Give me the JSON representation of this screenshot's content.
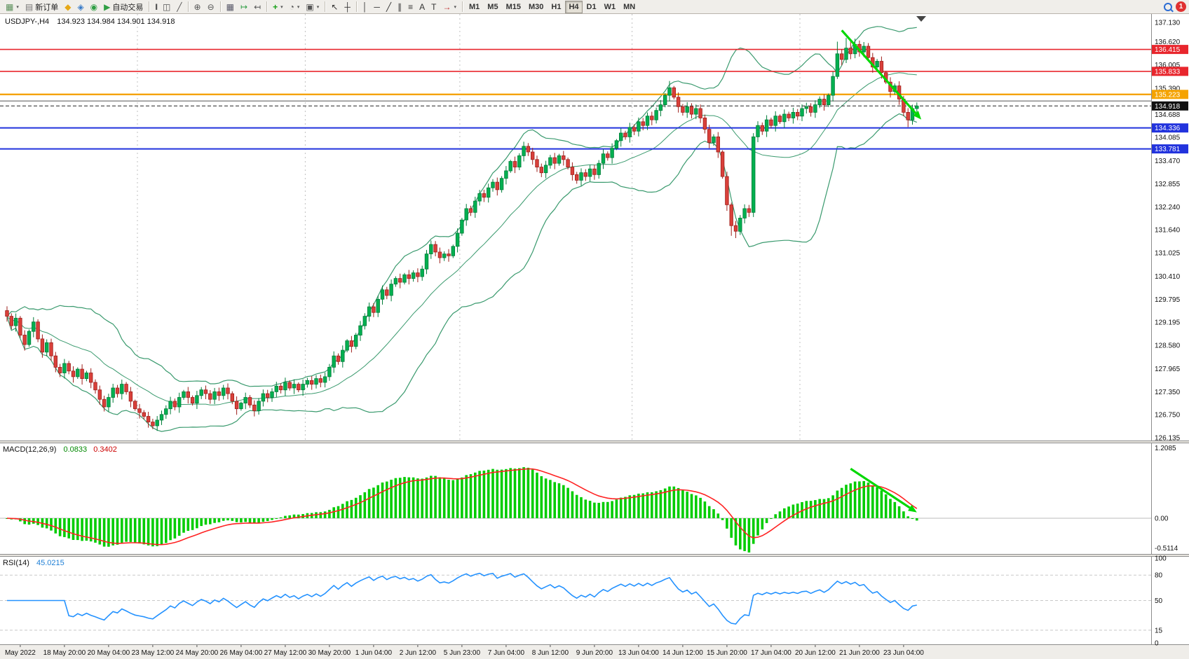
{
  "toolbar": {
    "items": [
      {
        "name": "new-chart-button",
        "glyph": "▦",
        "color": "#5a8f5a",
        "caret": true
      },
      {
        "name": "new-order-button",
        "glyph": "▤",
        "color": "#777",
        "label": "新订单"
      },
      {
        "name": "market-button",
        "glyph": "◆",
        "color": "#e6a817"
      },
      {
        "name": "signals-button",
        "glyph": "◈",
        "color": "#3579c8"
      },
      {
        "name": "community-button",
        "glyph": "◉",
        "color": "#2f9e44"
      },
      {
        "name": "autotrading-button",
        "glyph": "▶",
        "color": "#2f9e44",
        "label": "自动交易"
      },
      {
        "type": "sep"
      },
      {
        "name": "bar-chart-button",
        "glyph": "|||",
        "tight": true,
        "color": "#555"
      },
      {
        "name": "candlestick-chart-button",
        "glyph": "◫",
        "color": "#555"
      },
      {
        "name": "line-chart-button",
        "glyph": "╱",
        "color": "#555"
      },
      {
        "type": "sep"
      },
      {
        "name": "zoom-in-button",
        "glyph": "⊕",
        "color": "#555"
      },
      {
        "name": "zoom-out-button",
        "glyph": "⊖",
        "color": "#555"
      },
      {
        "type": "sep"
      },
      {
        "name": "tile-windows-button",
        "glyph": "▦",
        "color": "#556"
      },
      {
        "name": "auto-scroll-button",
        "glyph": "↦",
        "color": "#2f9e44"
      },
      {
        "name": "chart-shift-button",
        "glyph": "↤",
        "color": "#555"
      },
      {
        "type": "sep"
      },
      {
        "name": "indicators-button",
        "glyph": "+",
        "bold": true,
        "color": "#18a018",
        "caret": true
      },
      {
        "name": "periods-button",
        "glyph": "◔",
        "color": "#555",
        "caret": true
      },
      {
        "name": "templates-button",
        "glyph": "▣",
        "color": "#555",
        "caret": true
      },
      {
        "type": "sep"
      },
      {
        "name": "cursor-button",
        "glyph": "↖",
        "color": "#333"
      },
      {
        "name": "crosshair-button",
        "glyph": "┼",
        "color": "#333"
      },
      {
        "type": "sep"
      },
      {
        "name": "vertical-line-button",
        "glyph": "│",
        "color": "#333"
      },
      {
        "name": "horizontal-line-button",
        "glyph": "─",
        "color": "#333"
      },
      {
        "name": "trendline-button",
        "glyph": "╱",
        "color": "#333"
      },
      {
        "name": "channel-button",
        "glyph": "∥",
        "color": "#333"
      },
      {
        "name": "fibonacci-button",
        "glyph": "≡",
        "color": "#333"
      },
      {
        "name": "text-button",
        "glyph": "A",
        "color": "#333"
      },
      {
        "name": "text-label-button",
        "glyph": "T",
        "color": "#333"
      },
      {
        "name": "arrows-button",
        "glyph": "→",
        "color": "#c03030",
        "caret": true
      },
      {
        "type": "sep"
      },
      {
        "name": "timeframe-m1-button",
        "label": "M1",
        "cls": "tf"
      },
      {
        "name": "timeframe-m5-button",
        "label": "M5",
        "cls": "tf"
      },
      {
        "name": "timeframe-m15-button",
        "label": "M15",
        "cls": "tf"
      },
      {
        "name": "timeframe-m30-button",
        "label": "M30",
        "cls": "tf"
      },
      {
        "name": "timeframe-h1-button",
        "label": "H1",
        "cls": "tf"
      },
      {
        "name": "timeframe-h4-button",
        "label": "H4",
        "cls": "tf",
        "active": true
      },
      {
        "name": "timeframe-d1-button",
        "label": "D1",
        "cls": "tf"
      },
      {
        "name": "timeframe-w1-button",
        "label": "W1",
        "cls": "tf"
      },
      {
        "name": "timeframe-mn-button",
        "label": "MN",
        "cls": "tf"
      },
      {
        "name": "search-button",
        "cls": "right",
        "search": true
      },
      {
        "name": "notifications-badge",
        "cls": "badge",
        "label": "1"
      }
    ]
  },
  "chart": {
    "symbol_period": "USDJPY-,H4",
    "ohlc_text": "134.923 134.984 134.901 134.918"
  },
  "chart_data": {
    "type": "candlestick",
    "symbol": "USDJPY-",
    "timeframe": "H4",
    "first_open": 129.5,
    "closes": [
      129.35,
      129.1,
      129.3,
      128.85,
      128.6,
      128.95,
      129.2,
      128.75,
      128.4,
      128.65,
      128.3,
      128.0,
      127.85,
      128.1,
      127.9,
      127.75,
      127.95,
      127.7,
      127.85,
      127.6,
      127.4,
      127.15,
      126.95,
      127.2,
      127.45,
      127.3,
      127.55,
      127.35,
      127.1,
      126.9,
      126.8,
      126.7,
      126.55,
      126.45,
      126.6,
      126.75,
      126.9,
      127.1,
      126.95,
      127.2,
      127.35,
      127.2,
      127.05,
      127.25,
      127.4,
      127.3,
      127.15,
      127.35,
      127.25,
      127.45,
      127.3,
      127.1,
      126.9,
      127.05,
      127.2,
      127.0,
      126.85,
      127.1,
      127.3,
      127.2,
      127.35,
      127.5,
      127.4,
      127.6,
      127.45,
      127.55,
      127.4,
      127.55,
      127.65,
      127.55,
      127.7,
      127.6,
      127.75,
      128.0,
      128.3,
      128.15,
      128.45,
      128.7,
      128.55,
      128.85,
      129.1,
      129.35,
      129.6,
      129.45,
      129.8,
      130.05,
      129.9,
      130.2,
      130.35,
      130.25,
      130.45,
      130.35,
      130.5,
      130.4,
      130.6,
      131.0,
      131.25,
      131.05,
      130.9,
      131.0,
      130.95,
      131.2,
      131.55,
      131.9,
      132.2,
      132.1,
      132.4,
      132.6,
      132.5,
      132.75,
      132.9,
      132.7,
      133.0,
      133.2,
      133.45,
      133.3,
      133.6,
      133.85,
      133.7,
      133.5,
      133.3,
      133.15,
      133.35,
      133.55,
      133.4,
      133.6,
      133.5,
      133.3,
      133.1,
      132.95,
      133.15,
      133.05,
      133.25,
      133.1,
      133.4,
      133.65,
      133.55,
      133.8,
      134.0,
      134.2,
      134.1,
      134.35,
      134.25,
      134.5,
      134.4,
      134.65,
      134.55,
      134.8,
      134.95,
      135.2,
      135.4,
      135.15,
      134.9,
      134.75,
      134.9,
      134.7,
      134.85,
      134.6,
      134.3,
      133.95,
      134.1,
      133.7,
      133.05,
      132.3,
      131.75,
      131.6,
      131.95,
      132.2,
      132.1,
      134.1,
      134.4,
      134.25,
      134.55,
      134.4,
      134.65,
      134.5,
      134.7,
      134.6,
      134.75,
      134.65,
      134.85,
      134.9,
      134.75,
      134.95,
      135.1,
      134.95,
      135.2,
      135.7,
      136.3,
      136.15,
      136.45,
      136.3,
      136.55,
      136.35,
      136.5,
      136.2,
      135.95,
      136.1,
      135.8,
      135.55,
      135.3,
      135.45,
      135.1,
      134.75,
      134.55,
      134.85,
      134.918
    ],
    "high_overrides": {
      "150": 135.58,
      "188": 136.62,
      "190": 136.72,
      "191": 136.65,
      "192": 136.7
    },
    "low_overrides": {
      "33": 126.36,
      "164": 131.48,
      "165": 131.42,
      "204": 134.36
    },
    "x_labels": [
      {
        "idx": 3,
        "text": "May 2022"
      },
      {
        "idx": 13,
        "text": "18 May 20:00"
      },
      {
        "idx": 23,
        "text": "20 May 04:00"
      },
      {
        "idx": 33,
        "text": "23 May 12:00"
      },
      {
        "idx": 43,
        "text": "24 May 20:00"
      },
      {
        "idx": 53,
        "text": "26 May 04:00"
      },
      {
        "idx": 63,
        "text": "27 May 12:00"
      },
      {
        "idx": 73,
        "text": "30 May 20:00"
      },
      {
        "idx": 83,
        "text": "1 Jun 04:00"
      },
      {
        "idx": 93,
        "text": "2 Jun 12:00"
      },
      {
        "idx": 103,
        "text": "5 Jun 23:00"
      },
      {
        "idx": 113,
        "text": "7 Jun 04:00"
      },
      {
        "idx": 123,
        "text": "8 Jun 12:00"
      },
      {
        "idx": 133,
        "text": "9 Jun 20:00"
      },
      {
        "idx": 143,
        "text": "13 Jun 04:00"
      },
      {
        "idx": 153,
        "text": "14 Jun 12:00"
      },
      {
        "idx": 163,
        "text": "15 Jun 20:00"
      },
      {
        "idx": 173,
        "text": "17 Jun 04:00"
      },
      {
        "idx": 183,
        "text": "20 Jun 12:00"
      },
      {
        "idx": 193,
        "text": "21 Jun 20:00"
      },
      {
        "idx": 203,
        "text": "23 Jun 04:00"
      }
    ],
    "y_ticks": [
      "137.130",
      "136.620",
      "136.005",
      "135.390",
      "134.688",
      "134.085",
      "133.470",
      "132.855",
      "132.240",
      "131.640",
      "131.025",
      "130.410",
      "129.795",
      "129.195",
      "128.580",
      "127.965",
      "127.350",
      "126.750",
      "126.135"
    ],
    "y_range": [
      126.06,
      137.35
    ],
    "hlines": [
      {
        "name": "resistance-line-1",
        "price": 136.415,
        "color": "#e8262d",
        "width": 1.6,
        "label": "136.415"
      },
      {
        "name": "resistance-line-2",
        "price": 135.833,
        "color": "#e8262d",
        "width": 1.6,
        "label": "135.833"
      },
      {
        "name": "pivot-line-orange",
        "price": 135.223,
        "color": "#f5a300",
        "width": 2.4,
        "label": "135.223"
      },
      {
        "name": "gray-horizontal-line",
        "price": 135.05,
        "color": "#666666",
        "width": 1.2,
        "label": null
      },
      {
        "name": "current-price-line",
        "price": 134.918,
        "color": "#222222",
        "width": 1,
        "label": "134.918",
        "dashed": true,
        "label_bg": "#111111"
      },
      {
        "name": "support-line-1",
        "price": 134.336,
        "color": "#2233dd",
        "width": 2,
        "label": "134.336"
      },
      {
        "name": "support-line-2",
        "price": 133.781,
        "color": "#2233dd",
        "width": 2,
        "label": "133.781"
      }
    ],
    "period_separators_idx": [
      30,
      68,
      103,
      142,
      180
    ],
    "bollinger": {
      "period": 20,
      "deviation": 2
    },
    "trend_arrows": [
      {
        "pane": "main",
        "from_idx": 189,
        "from_value": 136.92,
        "to_idx": 207,
        "to_value": 134.56
      },
      {
        "pane": "macd",
        "from_idx": 191,
        "from_value": 0.85,
        "to_idx": 206,
        "to_value": 0.1
      }
    ],
    "indicators": {
      "macd": {
        "label": "MACD(12,26,9)",
        "fast": 12,
        "slow": 26,
        "signal": 9,
        "value_main": "0.0833",
        "value_signal": "0.3402",
        "scale_ticks": [
          {
            "value": 1.2085,
            "text": "1.2085"
          },
          {
            "value": 0,
            "text": "0.00"
          },
          {
            "value": -0.5114,
            "text": "-0.5114"
          }
        ],
        "y_range": [
          -0.613,
          1.286
        ]
      },
      "rsi": {
        "label": "RSI(14)",
        "period": 14,
        "value": "45.0215",
        "scale_ticks": [
          {
            "value": 100,
            "text": "100"
          },
          {
            "value": 80,
            "text": "80"
          },
          {
            "value": 50,
            "text": "50"
          },
          {
            "value": 15,
            "text": "15"
          },
          {
            "value": 0,
            "text": "0"
          }
        ],
        "levels": [
          80,
          50,
          15
        ],
        "y_range": [
          0,
          100
        ]
      }
    },
    "style": {
      "bull": "#00b050",
      "bull_border": "#007d38",
      "bear": "#d9403a",
      "bear_border": "#9e201c",
      "bollinger": "#3a9a6e",
      "macd_histogram": "#00cc00",
      "macd_signal": "#ff2222",
      "rsi": "#2492ff",
      "arrow": "#00d800"
    }
  }
}
